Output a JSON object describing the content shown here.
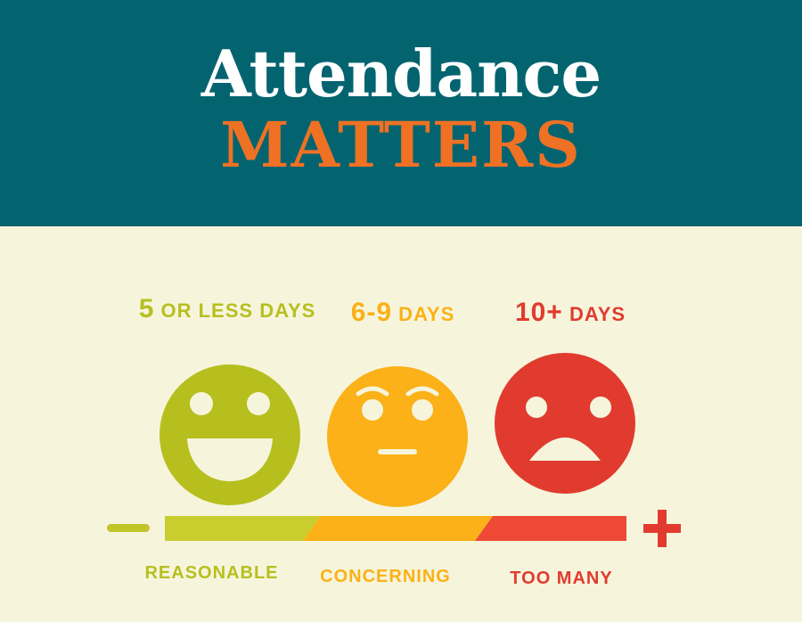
{
  "header": {
    "line1": "Attendance",
    "line2": "MATTERS"
  },
  "levels": [
    {
      "count": "5",
      "label_rest": " OR LESS DAYS",
      "category": "REASONABLE",
      "face_icon": "happy-face-icon",
      "color": "#b7bf1f"
    },
    {
      "count": "6-9",
      "label_rest": " DAYS",
      "category": "CONCERNING",
      "face_icon": "neutral-face-icon",
      "color": "#fbb117"
    },
    {
      "count": "10+",
      "label_rest": " DAYS",
      "category": "TOO MANY",
      "face_icon": "sad-face-icon",
      "color": "#e13b2f"
    }
  ],
  "scale": {
    "minus_icon": "minus-icon",
    "plus_icon": "plus-icon"
  },
  "colors": {
    "header_bg": "#036470",
    "title_white": "#ffffff",
    "title_orange": "#ef7124",
    "page_bg": "#f6f5dc"
  }
}
